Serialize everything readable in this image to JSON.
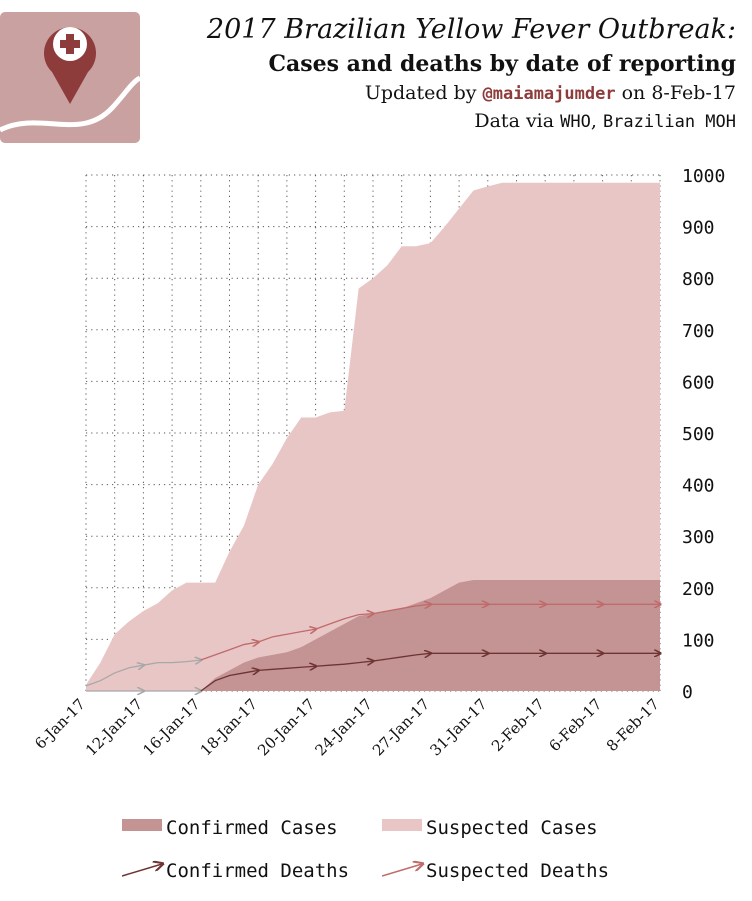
{
  "header": {
    "title_line1": "2017 Brazilian Yellow Fever Outbreak:",
    "title_line2": "Cases and deaths by date of reporting",
    "updated_prefix": "Updated by ",
    "updated_handle": "@maiamajumder",
    "updated_suffix": " on 8-Feb-17",
    "source_prefix": "Data via ",
    "source_who": "WHO",
    "source_sep": ", ",
    "source_moh": "Brazilian MOH"
  },
  "logo": {
    "icon": "map-pin-plus-icon",
    "bg_color": "#c9a1a1",
    "pin_color": "#8e3b3b"
  },
  "colors": {
    "confirmed_cases": "#c49393",
    "suspected_cases": "#e8c6c6",
    "confirmed_deaths": "#6e3434",
    "suspected_deaths": "#c06a6a",
    "gray_markers": "#a8a8a8"
  },
  "legend": {
    "confirmed_cases": "Confirmed Cases",
    "suspected_cases": "Suspected Cases",
    "confirmed_deaths": "Confirmed Deaths",
    "suspected_deaths": "Suspected Deaths"
  },
  "chart_data": {
    "type": "area",
    "title": "",
    "xlabel": "",
    "ylabel": "",
    "ylim": [
      0,
      1000
    ],
    "yticks": [
      0,
      100,
      200,
      300,
      400,
      500,
      600,
      700,
      800,
      900,
      1000
    ],
    "y_axis_position": "right",
    "grid": true,
    "legend_position": "bottom",
    "x": [
      0,
      1,
      2,
      3,
      4,
      5,
      6,
      7,
      8,
      9,
      10,
      11,
      12,
      13,
      14,
      15,
      16,
      17,
      18,
      19,
      20,
      21,
      22,
      23,
      24,
      25,
      26,
      27,
      28,
      29,
      30,
      31,
      32,
      33,
      34,
      35,
      36,
      37,
      38,
      39,
      40
    ],
    "tick_labels": [
      "6-Jan-17",
      "12-Jan-17",
      "16-Jan-17",
      "18-Jan-17",
      "20-Jan-17",
      "24-Jan-17",
      "27-Jan-17",
      "31-Jan-17",
      "2-Feb-17",
      "6-Feb-17",
      "8-Feb-17"
    ],
    "series": [
      {
        "name": "Suspected Cases",
        "kind": "area",
        "values": [
          12,
          55,
          110,
          135,
          155,
          170,
          195,
          210,
          210,
          210,
          270,
          320,
          400,
          440,
          490,
          530,
          530,
          540,
          543,
          780,
          800,
          825,
          862,
          862,
          868,
          900,
          935,
          970,
          978,
          985,
          985,
          985,
          985,
          985,
          985,
          985,
          985,
          985,
          985,
          985,
          985
        ]
      },
      {
        "name": "Confirmed Cases",
        "kind": "area",
        "values": [
          0,
          0,
          0,
          0,
          0,
          0,
          0,
          0,
          0,
          25,
          40,
          55,
          65,
          70,
          75,
          85,
          100,
          115,
          130,
          145,
          150,
          155,
          160,
          170,
          180,
          195,
          210,
          215,
          215,
          215,
          215,
          215,
          215,
          215,
          215,
          215,
          215,
          215,
          215,
          215,
          215
        ]
      },
      {
        "name": "Suspected Deaths",
        "kind": "line",
        "values": [
          10,
          20,
          35,
          45,
          50,
          55,
          55,
          57,
          60,
          70,
          80,
          90,
          95,
          105,
          110,
          115,
          120,
          130,
          140,
          148,
          150,
          155,
          160,
          165,
          168,
          168,
          168,
          168,
          168,
          168,
          168,
          168,
          168,
          168,
          168,
          168,
          168,
          168,
          168,
          168,
          168
        ]
      },
      {
        "name": "Confirmed Deaths",
        "kind": "line",
        "values": [
          0,
          0,
          0,
          0,
          0,
          0,
          0,
          0,
          0,
          20,
          30,
          35,
          40,
          42,
          44,
          46,
          48,
          50,
          52,
          55,
          58,
          62,
          66,
          70,
          73,
          73,
          73,
          73,
          73,
          73,
          73,
          73,
          73,
          73,
          73,
          73,
          73,
          73,
          73,
          73,
          73
        ]
      }
    ]
  }
}
